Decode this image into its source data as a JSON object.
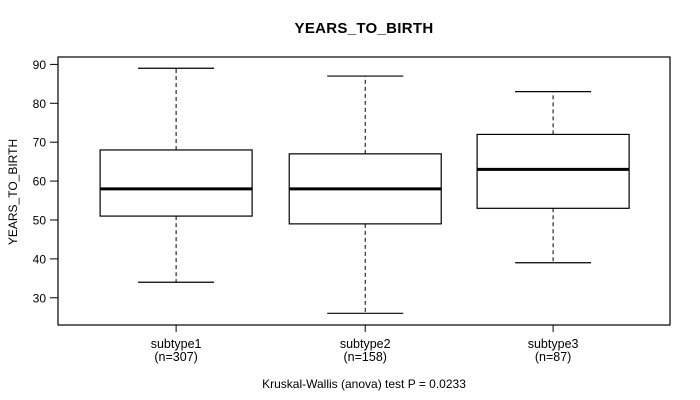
{
  "chart_data": {
    "type": "boxplot",
    "title": "YEARS_TO_BIRTH",
    "ylabel": "YEARS_TO_BIRTH",
    "xlabel": "",
    "annotation": "Kruskal-Wallis (anova) test P = 0.0233",
    "ylim": [
      23,
      91.9
    ],
    "yticks": [
      30,
      40,
      50,
      60,
      70,
      80,
      90
    ],
    "grid": false,
    "legend": "none",
    "colors": {
      "stroke": "#000000",
      "box_fill": "#ffffff",
      "background": "#ffffff"
    },
    "groups": [
      {
        "label": "subtype1",
        "n_label": "(n=307)",
        "n": 307,
        "whisker_low": 34,
        "q1": 51,
        "median": 58,
        "q3": 68,
        "whisker_high": 89
      },
      {
        "label": "subtype2",
        "n_label": "(n=158)",
        "n": 158,
        "whisker_low": 26,
        "q1": 49,
        "median": 58,
        "q3": 67,
        "whisker_high": 87
      },
      {
        "label": "subtype3",
        "n_label": "(n=87)",
        "n": 87,
        "whisker_low": 39,
        "q1": 53,
        "median": 63,
        "q3": 72,
        "whisker_high": 83
      }
    ]
  }
}
